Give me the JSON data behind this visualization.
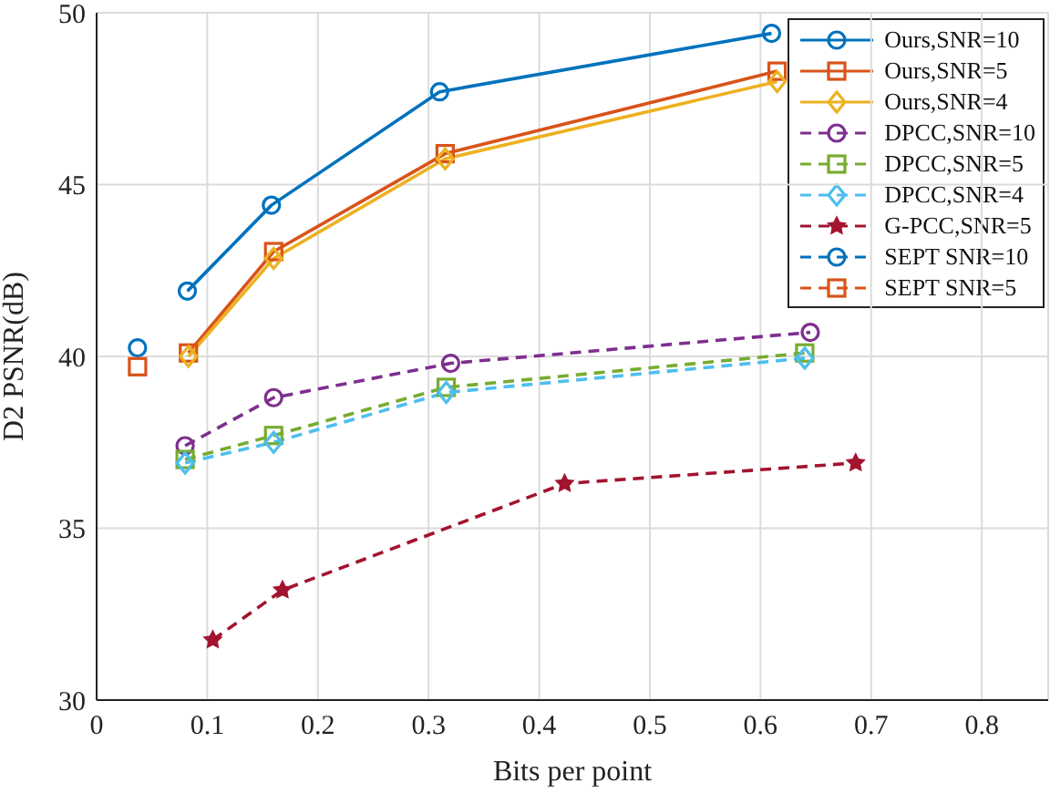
{
  "chart_data": {
    "type": "line",
    "xlabel": "Bits per point",
    "ylabel": "D2 PSNR(dB)",
    "xlim": [
      0,
      0.86
    ],
    "ylim": [
      30,
      50
    ],
    "xticks": [
      0,
      0.1,
      0.2,
      0.3,
      0.4,
      0.5,
      0.6,
      0.7,
      0.8
    ],
    "yticks": [
      30,
      35,
      40,
      45,
      50
    ],
    "grid": true,
    "legend": "top right",
    "series": [
      {
        "name": "Ours,SNR=10",
        "color": "#0072bd",
        "marker": "circle",
        "line_style": "solid",
        "x": [
          0.082,
          0.158,
          0.31,
          0.61
        ],
        "values": [
          41.9,
          44.4,
          47.7,
          49.4
        ]
      },
      {
        "name": "Ours,SNR=5",
        "color": "#d95319",
        "marker": "square",
        "line_style": "solid",
        "x": [
          0.083,
          0.16,
          0.315,
          0.615
        ],
        "values": [
          40.1,
          43.05,
          45.9,
          48.3
        ]
      },
      {
        "name": "Ours,SNR=4",
        "color": "#edb120",
        "marker": "diamond",
        "line_style": "solid",
        "x": [
          0.083,
          0.16,
          0.315,
          0.615
        ],
        "values": [
          40.0,
          42.85,
          45.75,
          48.0
        ]
      },
      {
        "name": "DPCC,SNR=10",
        "color": "#7e2f8e",
        "marker": "circle",
        "line_style": "dashed",
        "x": [
          0.08,
          0.16,
          0.32,
          0.645
        ],
        "values": [
          37.4,
          38.8,
          39.8,
          40.7
        ]
      },
      {
        "name": "DPCC,SNR=5",
        "color": "#77ac30",
        "marker": "square",
        "line_style": "dashed",
        "x": [
          0.08,
          0.16,
          0.316,
          0.64
        ],
        "values": [
          37.0,
          37.7,
          39.1,
          40.1
        ]
      },
      {
        "name": "DPCC,SNR=4",
        "color": "#4dbeee",
        "marker": "diamond",
        "line_style": "dashed",
        "x": [
          0.08,
          0.16,
          0.316,
          0.64
        ],
        "values": [
          36.9,
          37.5,
          38.95,
          39.95
        ]
      },
      {
        "name": "G-PCC,SNR=5",
        "color": "#a2142f",
        "marker": "star",
        "line_style": "dashed",
        "x": [
          0.105,
          0.168,
          0.423,
          0.686
        ],
        "values": [
          31.75,
          33.2,
          36.3,
          36.9
        ]
      },
      {
        "name": "SEPT SNR=10",
        "color": "#0072bd",
        "marker": "circle",
        "line_style": "dashed",
        "x": [
          0.037
        ],
        "values": [
          40.25
        ]
      },
      {
        "name": "SEPT SNR=5",
        "color": "#d95319",
        "marker": "square",
        "line_style": "dashed",
        "x": [
          0.037
        ],
        "values": [
          39.7
        ]
      }
    ]
  }
}
